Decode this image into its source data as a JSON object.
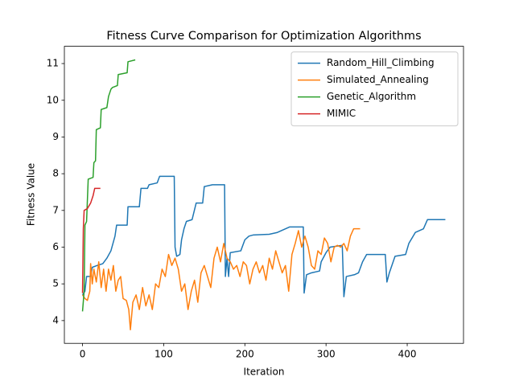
{
  "chart_data": {
    "type": "line",
    "title": "Fitness Curve Comparison for Optimization Algorithms",
    "x_label": "Iteration",
    "y_label": "Fitness Value",
    "xlim": [
      -22.35,
      469.35
    ],
    "ylim": [
      3.38,
      11.47
    ],
    "xticks": [
      0,
      100,
      200,
      300,
      400
    ],
    "yticks": [
      4,
      5,
      6,
      7,
      8,
      9,
      10,
      11
    ],
    "legend": "upper right",
    "series": [
      {
        "name": "Random_Hill_Climbing",
        "color": "#1f77b4",
        "x": [
          0,
          3,
          5,
          10,
          12,
          18,
          25,
          30,
          35,
          40,
          42,
          55,
          56,
          70,
          72,
          80,
          82,
          92,
          95,
          113,
          114,
          116,
          120,
          122,
          125,
          128,
          135,
          140,
          148,
          150,
          160,
          175,
          176,
          178,
          180,
          182,
          195,
          200,
          205,
          210,
          230,
          240,
          255,
          272,
          273,
          276,
          282,
          292,
          294,
          300,
          305,
          320,
          322,
          325,
          335,
          340,
          345,
          350,
          373,
          375,
          378,
          385,
          398,
          402,
          410,
          420,
          425,
          447
        ],
        "values": [
          4.7,
          4.8,
          5.2,
          5.2,
          5.45,
          5.5,
          5.55,
          5.7,
          5.9,
          6.3,
          6.6,
          6.6,
          7.1,
          7.1,
          7.6,
          7.6,
          7.7,
          7.75,
          7.93,
          7.93,
          6.0,
          5.75,
          5.8,
          6.2,
          6.5,
          6.7,
          6.75,
          7.2,
          7.2,
          7.65,
          7.7,
          7.7,
          5.2,
          5.7,
          5.2,
          5.85,
          5.9,
          6.2,
          6.3,
          6.33,
          6.35,
          6.4,
          6.55,
          6.55,
          4.75,
          5.25,
          5.3,
          5.35,
          5.6,
          5.85,
          6.0,
          6.05,
          4.65,
          5.2,
          5.25,
          5.3,
          5.6,
          5.8,
          5.8,
          5.05,
          5.3,
          5.75,
          5.8,
          6.1,
          6.4,
          6.5,
          6.75,
          6.75
        ]
      },
      {
        "name": "Simulated_Annealing",
        "color": "#ff7f0e",
        "x": [
          0,
          3,
          6,
          9,
          10,
          12,
          14,
          17,
          20,
          23,
          26,
          29,
          32,
          35,
          38,
          41,
          44,
          47,
          50,
          54,
          57,
          59,
          62,
          66,
          70,
          74,
          78,
          82,
          86,
          90,
          94,
          98,
          102,
          106,
          110,
          114,
          118,
          122,
          126,
          130,
          134,
          138,
          142,
          146,
          150,
          154,
          158,
          162,
          166,
          170,
          174,
          178,
          182,
          186,
          190,
          194,
          198,
          202,
          206,
          210,
          214,
          218,
          222,
          226,
          230,
          234,
          238,
          242,
          246,
          250,
          254,
          258,
          262,
          266,
          270,
          274,
          278,
          282,
          286,
          290,
          294,
          298,
          302,
          306,
          310,
          314,
          318,
          322,
          326,
          330,
          334,
          342
        ],
        "values": [
          4.7,
          4.6,
          4.55,
          4.8,
          5.55,
          5.0,
          5.4,
          5.05,
          5.6,
          4.9,
          5.4,
          4.8,
          5.4,
          5.1,
          5.5,
          4.8,
          5.1,
          5.2,
          4.6,
          4.55,
          4.3,
          3.75,
          4.5,
          4.7,
          4.3,
          4.9,
          4.4,
          4.7,
          4.3,
          5.0,
          4.9,
          5.4,
          5.2,
          5.8,
          5.5,
          5.7,
          5.4,
          4.8,
          5.0,
          4.3,
          4.8,
          5.1,
          4.5,
          5.3,
          5.5,
          5.2,
          4.9,
          5.7,
          6.0,
          5.6,
          6.1,
          5.7,
          5.6,
          5.4,
          5.5,
          5.2,
          5.6,
          5.5,
          5.0,
          5.4,
          5.6,
          5.3,
          5.5,
          5.1,
          5.7,
          5.4,
          5.9,
          5.6,
          5.3,
          5.5,
          4.8,
          5.8,
          6.1,
          6.45,
          6.0,
          6.3,
          6.0,
          5.5,
          5.4,
          5.9,
          5.8,
          6.25,
          6.1,
          5.6,
          6.0,
          6.05,
          6.0,
          6.1,
          5.9,
          6.3,
          6.5,
          6.5
        ]
      },
      {
        "name": "Genetic_Algorithm",
        "color": "#2ca02c",
        "x": [
          0,
          2,
          3,
          5,
          7,
          13,
          14,
          16,
          17,
          22,
          23,
          30,
          32,
          35,
          37,
          43,
          44,
          55,
          56,
          65
        ],
        "values": [
          4.25,
          4.8,
          6.6,
          6.7,
          7.85,
          7.9,
          8.3,
          8.35,
          9.2,
          9.25,
          9.75,
          9.8,
          10.1,
          10.3,
          10.35,
          10.4,
          10.7,
          10.75,
          11.05,
          11.1
        ]
      },
      {
        "name": "MIMIC",
        "color": "#d62728",
        "x": [
          0,
          1,
          2,
          6,
          10,
          13,
          15,
          22
        ],
        "values": [
          4.75,
          6.5,
          7.0,
          7.05,
          7.2,
          7.4,
          7.6,
          7.6
        ]
      }
    ]
  }
}
